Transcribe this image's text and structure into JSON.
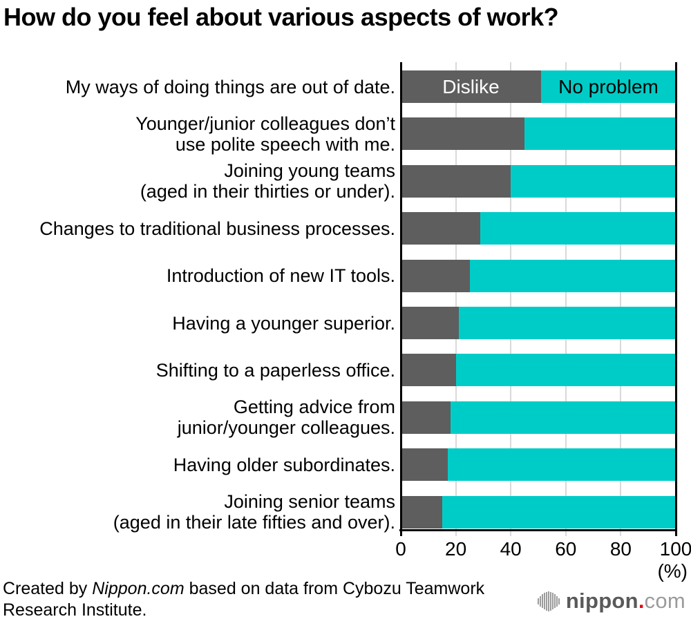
{
  "title": "How do you feel about various aspects of work?",
  "chart_data": {
    "type": "bar",
    "orientation": "horizontal",
    "stacked": true,
    "title": "How do you feel about various aspects of work?",
    "xlabel": "(%)",
    "ylabel": "",
    "xlim": [
      0,
      100
    ],
    "x_ticks": [
      0,
      20,
      40,
      60,
      80,
      100
    ],
    "grid": true,
    "legend": {
      "labels": [
        "Dislike",
        "No problem"
      ],
      "position": "inside-first-bar"
    },
    "categories": [
      [
        "My ways of doing things are out of date."
      ],
      [
        "Younger/junior colleagues don’t",
        "use polite speech with me."
      ],
      [
        "Joining young teams",
        "(aged in their thirties or under)."
      ],
      [
        "Changes to traditional business processes."
      ],
      [
        "Introduction of new IT tools."
      ],
      [
        "Having a younger superior."
      ],
      [
        "Shifting to a paperless office."
      ],
      [
        "Getting advice from",
        "junior/younger colleagues."
      ],
      [
        "Having older subordinates."
      ],
      [
        "Joining senior teams",
        "(aged in their late fifties and over)."
      ]
    ],
    "series": [
      {
        "name": "Dislike",
        "color": "#5E5E5E",
        "text_color": "#FFFFFF",
        "values": [
          51,
          45,
          40,
          29,
          25,
          21,
          20,
          18,
          17,
          15
        ]
      },
      {
        "name": "No problem",
        "color": "#00CCC7",
        "text_color": "#000000",
        "values": [
          49,
          55,
          60,
          71,
          75,
          79,
          80,
          82,
          83,
          85
        ]
      }
    ]
  },
  "footer": {
    "prefix": "Created by ",
    "source": "Nippon.com",
    "suffix": " based on data from Cybozu Teamwork Research Institute."
  },
  "logo": {
    "name": "nippon",
    "dot": ".",
    "tld": "com"
  },
  "colors": {
    "bar_dislike": "#5E5E5E",
    "bar_no_problem": "#00CCC7",
    "gridline": "#D9D9D9",
    "axis": "#000000",
    "logo_gray": "#9B9B9B",
    "logo_dark": "#595959",
    "logo_red": "#E60012"
  }
}
